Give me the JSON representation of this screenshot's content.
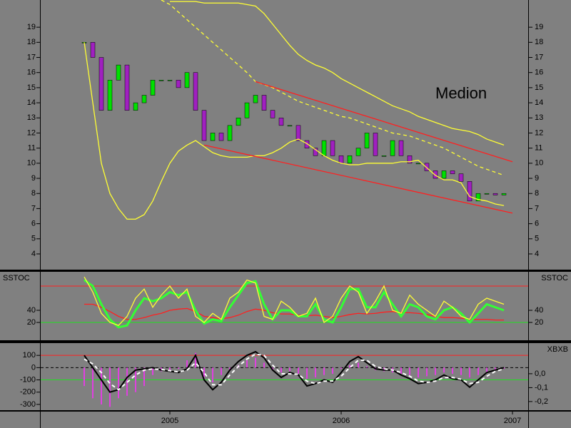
{
  "chart_data": [
    {
      "type": "candlestick",
      "annotation": "Medion",
      "annotation_color": "#e00000",
      "ylim": [
        2.96,
        20.8
      ],
      "yticks": [
        4,
        5,
        6,
        7,
        8,
        9,
        10,
        11,
        12,
        13,
        14,
        15,
        16,
        17,
        18,
        19
      ],
      "mirror_yticks": true,
      "series": [
        {
          "style": "candle",
          "up_color": "#00e000",
          "down_color": "#a020c0",
          "values": [
            18,
            17,
            13.5,
            15.5,
            16.5,
            13.5,
            14,
            14.5,
            15.5,
            15.5,
            15.5,
            15,
            16,
            13.5,
            11.5,
            12,
            11.5,
            12.5,
            13,
            14,
            14.5,
            13.5,
            13,
            12.5,
            12.5,
            11.5,
            11,
            10.5,
            11.5,
            10.5,
            10,
            10.5,
            11,
            12,
            10.5,
            10.5,
            11.5,
            10.5,
            10,
            10,
            9.5,
            9,
            9.5,
            9.3,
            8.8,
            7.5,
            8,
            8,
            7.9,
            8,
            null
          ]
        },
        {
          "style": "line",
          "color": "#ffff33",
          "values": [
            null,
            null,
            null,
            null,
            null,
            null,
            null,
            null,
            null,
            null,
            20.7,
            20.7,
            20.7,
            20.7,
            20.6,
            20.6,
            20.6,
            20.6,
            20.6,
            20.5,
            20.4,
            19.9,
            19.2,
            18.5,
            17.8,
            17.2,
            16.8,
            16.5,
            16.3,
            16.0,
            15.6,
            15.3,
            15.0,
            14.7,
            14.4,
            14.1,
            13.8,
            13.6,
            13.4,
            13.1,
            12.9,
            12.7,
            12.5,
            12.3,
            12.2,
            12.1,
            11.9,
            11.6,
            11.4,
            11.2,
            null
          ]
        },
        {
          "style": "line",
          "color": "#ffff33",
          "dash": true,
          "values": [
            null,
            null,
            null,
            null,
            null,
            null,
            null,
            null,
            null,
            20.8,
            20.5,
            20.0,
            19.5,
            19.0,
            18.5,
            18.0,
            17.5,
            17.0,
            16.5,
            16.0,
            15.4,
            15.2,
            15.0,
            14.7,
            14.4,
            14.1,
            13.9,
            13.7,
            13.5,
            13.3,
            13.1,
            13.0,
            12.8,
            12.6,
            12.4,
            12.2,
            12.0,
            11.9,
            11.8,
            11.6,
            11.4,
            11.2,
            11.0,
            10.7,
            10.4,
            10.1,
            9.8,
            9.6,
            9.4,
            9.2,
            null
          ]
        },
        {
          "style": "line",
          "color": "#ffff33",
          "values": [
            18,
            14,
            10,
            8,
            7,
            6.3,
            6.3,
            6.6,
            7.5,
            8.8,
            10,
            10.8,
            11.2,
            11.5,
            11.1,
            10.7,
            10.5,
            10.4,
            10.4,
            10.4,
            10.5,
            10.5,
            10.7,
            11.0,
            11.4,
            11.6,
            11.3,
            10.9,
            10.5,
            10.2,
            10.0,
            9.9,
            9.9,
            10.0,
            10.0,
            10.0,
            10.0,
            10.1,
            10.1,
            10.2,
            9.7,
            9.2,
            8.9,
            8.9,
            8.7,
            7.8,
            7.6,
            7.5,
            7.3,
            7.2,
            null
          ]
        },
        {
          "style": "line",
          "color": "#ff2020",
          "values": [
            null,
            null,
            null,
            null,
            null,
            null,
            null,
            null,
            null,
            null,
            null,
            null,
            null,
            null,
            null,
            null,
            null,
            null,
            null,
            null,
            15.4,
            null,
            null,
            null,
            null,
            null,
            null,
            null,
            null,
            null,
            null,
            null,
            null,
            null,
            null,
            null,
            null,
            null,
            null,
            null,
            null,
            null,
            null,
            null,
            null,
            null,
            null,
            null,
            null,
            null,
            10.1
          ]
        },
        {
          "style": "line",
          "color": "#ff2020",
          "values": [
            null,
            null,
            null,
            null,
            null,
            null,
            null,
            null,
            null,
            null,
            null,
            null,
            null,
            null,
            11.2,
            null,
            null,
            null,
            null,
            null,
            null,
            null,
            null,
            null,
            null,
            null,
            null,
            null,
            null,
            null,
            null,
            null,
            null,
            null,
            null,
            null,
            null,
            null,
            null,
            null,
            null,
            null,
            null,
            null,
            null,
            null,
            null,
            null,
            null,
            null,
            6.7
          ]
        }
      ]
    },
    {
      "type": "line",
      "label": "SSTOC",
      "label_sides": [
        "left",
        "right"
      ],
      "ylim": [
        -9.4,
        103.5
      ],
      "yticks": [
        20,
        40
      ],
      "mirror_yticks": true,
      "hlines": [
        {
          "value": 80,
          "color": "#ff2020"
        },
        {
          "value": 20,
          "color": "#20e020"
        }
      ],
      "series": [
        {
          "style": "line",
          "color": "#ff2020",
          "values": [
            50,
            50,
            45,
            38,
            30,
            25,
            25,
            28,
            32,
            35,
            40,
            42,
            43,
            38,
            30,
            28,
            26,
            28,
            32,
            38,
            42,
            40,
            36,
            34,
            34,
            32,
            31,
            32,
            30,
            28,
            30,
            33,
            35,
            34,
            35,
            37,
            38,
            36,
            36,
            35,
            33,
            30,
            28,
            28,
            27,
            25,
            25,
            25,
            24,
            24,
            null
          ]
        },
        {
          "style": "line",
          "color": "#33ff33",
          "width": 3,
          "values": [
            90,
            80,
            50,
            25,
            12,
            15,
            40,
            60,
            55,
            60,
            70,
            65,
            70,
            40,
            18,
            25,
            22,
            45,
            65,
            85,
            88,
            50,
            25,
            40,
            40,
            30,
            30,
            50,
            25,
            20,
            45,
            75,
            75,
            45,
            45,
            70,
            50,
            30,
            50,
            45,
            30,
            25,
            40,
            45,
            35,
            20,
            35,
            50,
            45,
            40,
            null
          ]
        },
        {
          "style": "line",
          "color": "#ffff33",
          "values": [
            95,
            70,
            35,
            20,
            15,
            30,
            60,
            75,
            45,
            65,
            80,
            60,
            75,
            30,
            20,
            35,
            25,
            60,
            70,
            90,
            85,
            30,
            25,
            55,
            45,
            30,
            35,
            60,
            20,
            30,
            60,
            80,
            70,
            35,
            55,
            80,
            40,
            35,
            65,
            50,
            40,
            30,
            55,
            45,
            30,
            25,
            50,
            60,
            55,
            50,
            null
          ]
        }
      ]
    },
    {
      "type": "line",
      "label": "XBXB",
      "label_sides": [
        "right"
      ],
      "ylim": [
        -347,
        200
      ],
      "yticks": [
        100,
        0,
        -100,
        -200,
        -300
      ],
      "y2lim": [
        -0.262,
        0.22
      ],
      "y2ticks": [
        {
          "value": 0,
          "label": "0,0"
        },
        {
          "value": -0.1,
          "label": "-0,1"
        },
        {
          "value": -0.2,
          "label": "-0,2"
        }
      ],
      "hlines": [
        {
          "value": 100,
          "color": "#ff2020"
        },
        {
          "value": 0,
          "color": "#000000",
          "dash": true
        },
        {
          "value": -100,
          "color": "#20e020"
        }
      ],
      "categories": [
        null,
        null,
        null,
        null,
        null,
        null,
        null,
        null,
        null,
        null,
        "2005",
        null,
        null,
        null,
        null,
        null,
        null,
        null,
        null,
        null,
        null,
        null,
        null,
        null,
        null,
        null,
        null,
        null,
        null,
        null,
        "2006",
        null,
        null,
        null,
        null,
        null,
        null,
        null,
        null,
        null,
        null,
        null,
        null,
        null,
        null,
        null,
        null,
        null,
        null,
        null,
        "2007"
      ],
      "series": [
        {
          "style": "histogram",
          "color": "#e040e0",
          "values": [
            -150,
            -250,
            -300,
            -320,
            -250,
            -230,
            -200,
            -150,
            -60,
            -30,
            -20,
            -10,
            60,
            120,
            -80,
            -120,
            -60,
            -20,
            20,
            60,
            80,
            40,
            -20,
            -40,
            -30,
            -50,
            -90,
            -80,
            -60,
            -50,
            -10,
            20,
            40,
            10,
            -20,
            -30,
            -40,
            -50,
            -60,
            -80,
            -70,
            -60,
            -40,
            -50,
            -60,
            -80,
            -60,
            -40,
            -20,
            -10,
            null
          ]
        },
        {
          "style": "line",
          "color": "#000000",
          "width": 2,
          "values": [
            100,
            0,
            -100,
            -200,
            -180,
            -80,
            -20,
            -10,
            0,
            -20,
            -30,
            -40,
            -10,
            100,
            -100,
            -180,
            -120,
            -20,
            50,
            100,
            130,
            80,
            -20,
            -80,
            -40,
            -60,
            -150,
            -130,
            -100,
            -120,
            -40,
            50,
            90,
            40,
            -10,
            -20,
            -20,
            -60,
            -90,
            -130,
            -120,
            -100,
            -60,
            -90,
            -100,
            -160,
            -100,
            -40,
            -20,
            0,
            null
          ]
        },
        {
          "style": "line",
          "color": "#ffffff",
          "dash": true,
          "width": 2,
          "values": [
            70,
            30,
            -40,
            -130,
            -180,
            -120,
            -60,
            -20,
            -10,
            -15,
            -25,
            -35,
            -20,
            40,
            -40,
            -140,
            -140,
            -60,
            10,
            70,
            110,
            100,
            20,
            -50,
            -50,
            -55,
            -110,
            -130,
            -110,
            -110,
            -70,
            0,
            60,
            60,
            10,
            -10,
            -20,
            -40,
            -70,
            -110,
            -120,
            -110,
            -80,
            -80,
            -95,
            -130,
            -120,
            -70,
            -30,
            -10,
            null
          ]
        }
      ]
    }
  ]
}
